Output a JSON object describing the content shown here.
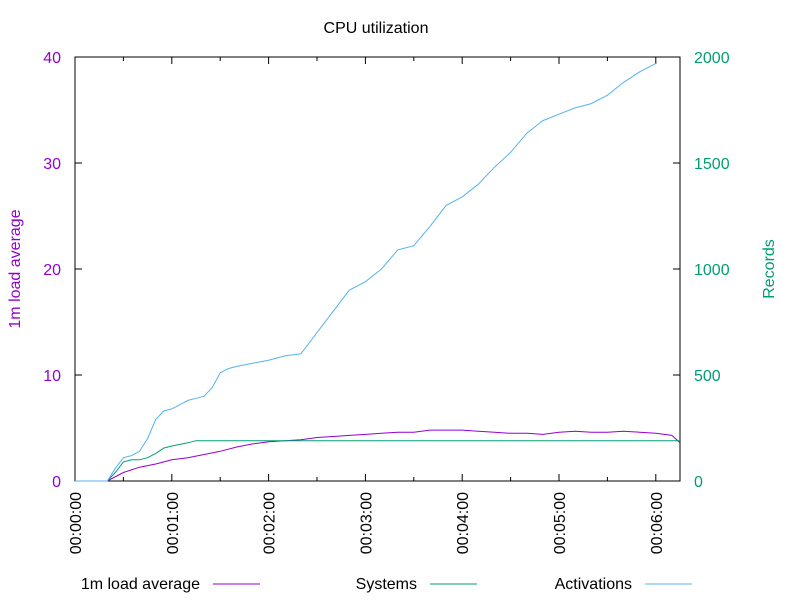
{
  "chart_data": {
    "type": "line",
    "title": "CPU utilization",
    "ylabel": "1m load average",
    "y2label": "Records",
    "xlim": [
      "00:00:00",
      "00:06:15"
    ],
    "ylim": [
      0,
      40
    ],
    "y2lim": [
      0,
      2000
    ],
    "xticks": [
      "00:00:00",
      "00:01:00",
      "00:02:00",
      "00:03:00",
      "00:04:00",
      "00:05:00",
      "00:06:00"
    ],
    "yticks": [
      0,
      10,
      20,
      30,
      40
    ],
    "y2ticks": [
      0,
      500,
      1000,
      1500,
      2000
    ],
    "grid": false,
    "legend": "bottom",
    "colors": {
      "axis_left": "#9400d3",
      "axis_right": "#009e73",
      "load": "#9400d3",
      "systems": "#009e73",
      "activations": "#56b4e9"
    },
    "series": [
      {
        "name": "1m load average",
        "axis": "left",
        "color": "#9400d3",
        "x": [
          "00:00:00",
          "00:00:20",
          "00:00:30",
          "00:00:40",
          "00:00:50",
          "00:01:00",
          "00:01:10",
          "00:01:20",
          "00:01:30",
          "00:01:40",
          "00:01:50",
          "00:02:00",
          "00:02:10",
          "00:02:20",
          "00:02:30",
          "00:02:40",
          "00:02:50",
          "00:03:00",
          "00:03:10",
          "00:03:20",
          "00:03:30",
          "00:03:40",
          "00:03:50",
          "00:04:00",
          "00:04:10",
          "00:04:20",
          "00:04:30",
          "00:04:40",
          "00:04:50",
          "00:05:00",
          "00:05:10",
          "00:05:20",
          "00:05:30",
          "00:05:40",
          "00:05:50",
          "00:06:00",
          "00:06:10",
          "00:06:15"
        ],
        "y": [
          0,
          0,
          0.8,
          1.3,
          1.6,
          2.0,
          2.2,
          2.5,
          2.8,
          3.2,
          3.5,
          3.7,
          3.8,
          3.9,
          4.1,
          4.2,
          4.3,
          4.4,
          4.5,
          4.6,
          4.6,
          4.8,
          4.8,
          4.8,
          4.7,
          4.6,
          4.5,
          4.5,
          4.4,
          4.6,
          4.7,
          4.6,
          4.6,
          4.7,
          4.6,
          4.5,
          4.3,
          3.6
        ]
      },
      {
        "name": "Systems",
        "axis": "right",
        "color": "#009e73",
        "x": [
          "00:00:00",
          "00:00:20",
          "00:00:25",
          "00:00:30",
          "00:00:35",
          "00:00:40",
          "00:00:45",
          "00:00:50",
          "00:00:55",
          "00:01:00",
          "00:01:10",
          "00:01:15",
          "00:06:15"
        ],
        "y": [
          0,
          0,
          40,
          90,
          100,
          100,
          110,
          130,
          155,
          165,
          180,
          190,
          190
        ]
      },
      {
        "name": "Activations",
        "axis": "right",
        "color": "#56b4e9",
        "x": [
          "00:00:00",
          "00:00:20",
          "00:00:25",
          "00:00:30",
          "00:00:35",
          "00:00:40",
          "00:00:45",
          "00:00:50",
          "00:00:55",
          "00:01:00",
          "00:01:05",
          "00:01:10",
          "00:01:15",
          "00:01:20",
          "00:01:25",
          "00:01:30",
          "00:01:35",
          "00:01:40",
          "00:01:50",
          "00:02:00",
          "00:02:10",
          "00:02:20",
          "00:02:30",
          "00:02:40",
          "00:02:50",
          "00:03:00",
          "00:03:10",
          "00:03:20",
          "00:03:30",
          "00:03:40",
          "00:03:50",
          "00:04:00",
          "00:04:10",
          "00:04:20",
          "00:04:30",
          "00:04:40",
          "00:04:50",
          "00:05:00",
          "00:05:10",
          "00:05:20",
          "00:05:30",
          "00:05:40",
          "00:05:50",
          "00:06:00"
        ],
        "y": [
          0,
          0,
          60,
          110,
          120,
          140,
          200,
          290,
          330,
          340,
          360,
          380,
          390,
          400,
          440,
          510,
          530,
          540,
          555,
          570,
          590,
          600,
          700,
          800,
          900,
          940,
          1000,
          1090,
          1110,
          1200,
          1300,
          1340,
          1400,
          1480,
          1550,
          1640,
          1700,
          1730,
          1760,
          1780,
          1820,
          1880,
          1930,
          1970
        ]
      }
    ]
  }
}
